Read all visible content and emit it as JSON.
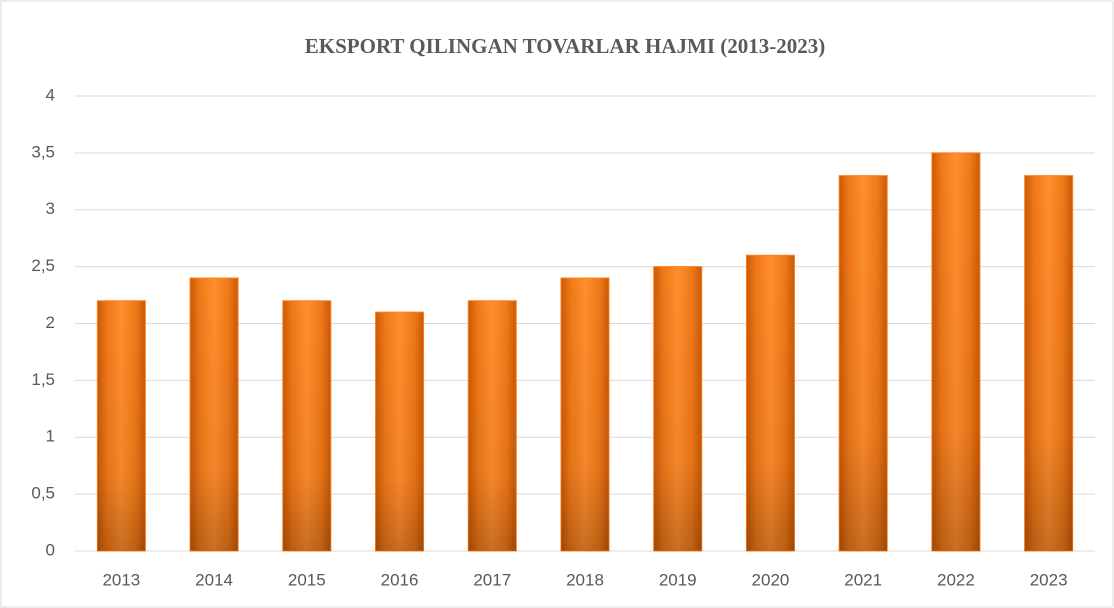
{
  "chart_data": {
    "type": "bar",
    "title": "EKSPORT QILINGAN TOVARLAR HAJMI (2013-2023)",
    "categories": [
      "2013",
      "2014",
      "2015",
      "2016",
      "2017",
      "2018",
      "2019",
      "2020",
      "2021",
      "2022",
      "2023"
    ],
    "values": [
      2.2,
      2.4,
      2.2,
      2.1,
      2.2,
      2.4,
      2.5,
      2.6,
      3.3,
      3.5,
      3.3
    ],
    "color": "#ff7f1e",
    "ylim": [
      0,
      4
    ],
    "yticks": [
      0,
      {
        "value": 0.5,
        "label": "0,5"
      },
      1,
      {
        "value": 1.5,
        "label": "1,5"
      },
      2,
      {
        "value": 2.5,
        "label": "2,5"
      },
      3,
      {
        "value": 3.5,
        "label": "3,5"
      },
      4
    ],
    "grid": true
  }
}
